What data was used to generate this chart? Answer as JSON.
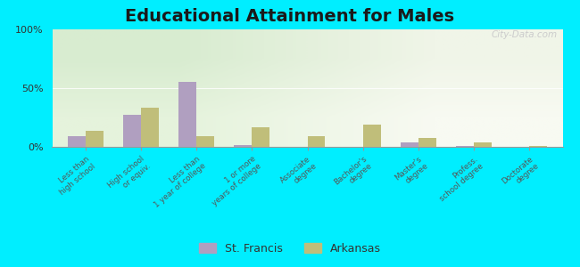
{
  "title": "Educational Attainment for Males",
  "categories": [
    "Less than\nhigh school",
    "High school\nor equiv.",
    "Less than\n1 year of college",
    "1 or more\nyears of college",
    "Associate\ndegree",
    "Bachelor's\ndegree",
    "Master's\ndegree",
    "Profess.\nschool degree",
    "Doctorate\ndegree"
  ],
  "st_francis": [
    9.0,
    27.0,
    55.0,
    1.5,
    0.3,
    0.3,
    3.5,
    0.5,
    0.3
  ],
  "arkansas": [
    14.0,
    33.0,
    9.0,
    17.0,
    9.0,
    19.0,
    7.5,
    3.5,
    1.0
  ],
  "sf_color": "#b09fc0",
  "ar_color": "#c0be7a",
  "bg_color": "#00eeff",
  "plot_bg_left": "#d8ecd0",
  "plot_bg_right": "#f5f8ee",
  "title_fontsize": 14,
  "yticks": [
    0,
    50,
    100
  ],
  "ylim": [
    0,
    100
  ],
  "bar_width": 0.32,
  "watermark": "City-Data.com",
  "legend_sf": "St. Francis",
  "legend_ar": "Arkansas"
}
